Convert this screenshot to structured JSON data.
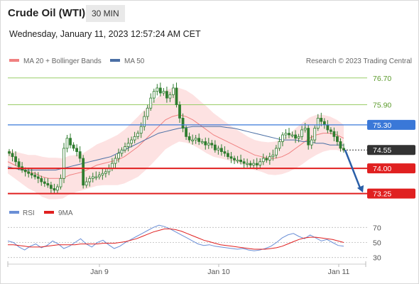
{
  "header": {
    "instrument": "Crude Oil (WTI)",
    "timeframe": "30 MIN",
    "datetime": "Wednesday, January 11, 2023 12:57:24 AM CET"
  },
  "legend": {
    "ma20_label": "MA 20 + Bollinger Bands",
    "ma50_label": "MA 50",
    "credit": "Research © 2023 Trading Central",
    "rsi_label": "RSI",
    "ma9_label": "9MA"
  },
  "colors": {
    "bollinger_fill": "#fde2e2",
    "ma20": "#f08080",
    "ma50": "#4a6fa5",
    "candle": "#2f7d2f",
    "resistance_green": "#9acd68",
    "pivot_blue": "#3a78d8",
    "support_red": "#e02020",
    "current_price_bg": "#333333",
    "arrow": "#2a5fa8",
    "rsi": "#6b8fd6",
    "rsi_ma": "#e02020"
  },
  "chart_data": [
    {
      "type": "candlestick",
      "title": "Crude Oil (WTI)",
      "timeframe": "30 MIN",
      "x_tick_labels": [
        "Jan 9",
        "Jan 10",
        "Jan 11"
      ],
      "ylim": [
        73.05,
        76.95
      ],
      "price_levels": [
        {
          "value": 76.7,
          "label": "76.70",
          "kind": "resistance",
          "color": "#9acd68"
        },
        {
          "value": 75.9,
          "label": "75.90",
          "kind": "resistance",
          "color": "#9acd68"
        },
        {
          "value": 75.3,
          "label": "75.30",
          "kind": "pivot",
          "color": "#3a78d8"
        },
        {
          "value": 74.55,
          "label": "74.55",
          "kind": "current",
          "color": "#333333"
        },
        {
          "value": 74.0,
          "label": "74.00",
          "kind": "support",
          "color": "#e02020"
        },
        {
          "value": 73.25,
          "label": "73.25",
          "kind": "support",
          "color": "#e02020"
        }
      ],
      "close_series": [
        74.45,
        74.35,
        74.2,
        74.05,
        73.95,
        73.9,
        73.85,
        73.8,
        73.75,
        73.7,
        73.6,
        73.55,
        73.5,
        73.4,
        73.35,
        73.45,
        73.7,
        74.6,
        74.9,
        74.7,
        74.6,
        74.5,
        74.3,
        73.5,
        73.6,
        73.7,
        73.75,
        73.75,
        73.8,
        73.85,
        73.9,
        74.0,
        74.15,
        74.3,
        74.45,
        74.55,
        74.65,
        74.75,
        74.85,
        74.95,
        75.05,
        75.25,
        75.55,
        75.8,
        76.1,
        76.3,
        76.4,
        76.25,
        76.3,
        76.1,
        76.2,
        76.4,
        75.9,
        75.5,
        75.2,
        74.95,
        74.85,
        74.85,
        74.9,
        74.8,
        74.8,
        74.7,
        74.75,
        74.7,
        74.55,
        74.6,
        74.5,
        74.45,
        74.35,
        74.3,
        74.25,
        74.25,
        74.2,
        74.15,
        74.15,
        74.1,
        74.15,
        74.1,
        74.2,
        74.3,
        74.25,
        74.35,
        74.4,
        74.6,
        74.8,
        75.0,
        75.05,
        75.0,
        75.0,
        74.9,
        74.95,
        75.15,
        75.2,
        74.7,
        74.85,
        75.2,
        75.5,
        75.4,
        75.3,
        75.15,
        75.1,
        74.95,
        74.8,
        74.6,
        74.55
      ],
      "ma20_series": [
        74.2,
        74.1,
        74.0,
        73.9,
        73.85,
        73.75,
        73.7,
        73.7,
        73.7,
        73.8,
        73.85,
        73.9,
        74.0,
        74.1,
        74.15,
        74.2,
        74.25,
        74.35,
        74.5,
        74.65,
        74.85,
        75.05,
        75.25,
        75.45,
        75.55,
        75.6,
        75.55,
        75.45,
        75.3,
        75.15,
        75.0,
        74.9,
        74.8,
        74.7,
        74.6,
        74.5,
        74.4,
        74.35,
        74.3,
        74.3,
        74.35,
        74.45,
        74.6,
        74.75,
        74.9,
        75.0,
        75.05,
        75.05,
        75.0,
        74.9
      ],
      "ma50_series": [
        74.05,
        74.0,
        73.95,
        73.95,
        73.95,
        73.95,
        73.95,
        73.95,
        74.0,
        74.05,
        74.1,
        74.15,
        74.2,
        74.25,
        74.3,
        74.35,
        74.45,
        74.55,
        74.65,
        74.75,
        74.85,
        74.95,
        75.05,
        75.1,
        75.15,
        75.2,
        75.22,
        75.25,
        75.25,
        75.25,
        75.25,
        75.25,
        75.22,
        75.2,
        75.15,
        75.1,
        75.05,
        75.0,
        74.95,
        74.9,
        74.85,
        74.85,
        74.85,
        74.8,
        74.8,
        74.75,
        74.75,
        74.7,
        74.7,
        74.7
      ]
    },
    {
      "type": "line",
      "title": "RSI",
      "ylim": [
        25,
        75
      ],
      "y_ticks": [
        30,
        50,
        70
      ],
      "series": [
        {
          "name": "RSI",
          "color": "#6b8fd6",
          "values": [
            52,
            50,
            44,
            40,
            45,
            48,
            43,
            46,
            52,
            48,
            42,
            45,
            50,
            55,
            48,
            44,
            50,
            53,
            47,
            42,
            45,
            50,
            54,
            58,
            62,
            66,
            70,
            73,
            71,
            68,
            64,
            60,
            56,
            52,
            48,
            46,
            47,
            45,
            44,
            43,
            42,
            41,
            42,
            40,
            39,
            40,
            42,
            45,
            50,
            56,
            60,
            62,
            58,
            55,
            60,
            56,
            52,
            54,
            50,
            46,
            45
          ]
        },
        {
          "name": "9MA",
          "color": "#e02020",
          "values": [
            47,
            47,
            46,
            45,
            44,
            44,
            44,
            45,
            46,
            47,
            47,
            47,
            47,
            48,
            48,
            48,
            48,
            49,
            49,
            49,
            50,
            51,
            53,
            55,
            58,
            61,
            64,
            66,
            68,
            68,
            67,
            65,
            62,
            59,
            56,
            53,
            51,
            49,
            47,
            46,
            45,
            44,
            43,
            42,
            41,
            41,
            41,
            42,
            43,
            45,
            48,
            51,
            54,
            56,
            57,
            57,
            56,
            55,
            54,
            52,
            50
          ]
        }
      ]
    }
  ]
}
